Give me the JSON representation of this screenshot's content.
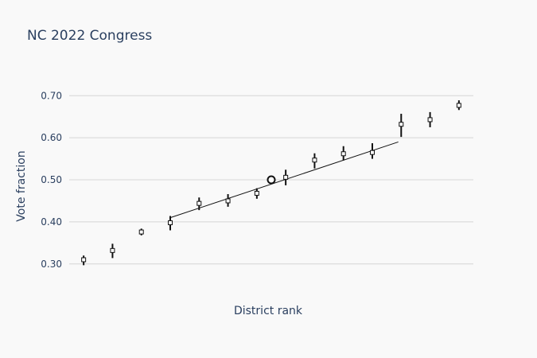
{
  "chart_data": {
    "type": "scatter",
    "title": "NC 2022 Congress",
    "xlabel": "District rank",
    "ylabel": "Vote fraction",
    "ylim": [
      0.275,
      0.71
    ],
    "xlim": [
      0.5,
      14.5
    ],
    "y_ticks": [
      {
        "value": 0.3,
        "label": "0.30"
      },
      {
        "value": 0.4,
        "label": "0.40"
      },
      {
        "value": 0.5,
        "label": "0.50"
      },
      {
        "value": 0.6,
        "label": "0.60"
      },
      {
        "value": 0.7,
        "label": "0.70"
      }
    ],
    "grid": true,
    "points": [
      {
        "x": 1,
        "y": 0.31,
        "low": 0.297,
        "high": 0.32
      },
      {
        "x": 2,
        "y": 0.332,
        "low": 0.314,
        "high": 0.348
      },
      {
        "x": 3,
        "y": 0.376,
        "low": 0.368,
        "high": 0.384
      },
      {
        "x": 4,
        "y": 0.398,
        "low": 0.38,
        "high": 0.414
      },
      {
        "x": 5,
        "y": 0.444,
        "low": 0.428,
        "high": 0.458
      },
      {
        "x": 6,
        "y": 0.45,
        "low": 0.436,
        "high": 0.466
      },
      {
        "x": 7,
        "y": 0.468,
        "low": 0.455,
        "high": 0.48
      },
      {
        "x": 8,
        "y": 0.506,
        "low": 0.487,
        "high": 0.524
      },
      {
        "x": 9,
        "y": 0.547,
        "low": 0.527,
        "high": 0.563
      },
      {
        "x": 10,
        "y": 0.562,
        "low": 0.546,
        "high": 0.58
      },
      {
        "x": 11,
        "y": 0.565,
        "low": 0.55,
        "high": 0.587
      },
      {
        "x": 12,
        "y": 0.632,
        "low": 0.602,
        "high": 0.657
      },
      {
        "x": 13,
        "y": 0.643,
        "low": 0.625,
        "high": 0.661
      },
      {
        "x": 14,
        "y": 0.677,
        "low": 0.666,
        "high": 0.689
      }
    ],
    "trend_line": {
      "x": [
        4,
        11.9
      ],
      "y": [
        0.41,
        0.59
      ]
    },
    "midpoint_marker": {
      "x": 7.5,
      "y": 0.5
    }
  }
}
